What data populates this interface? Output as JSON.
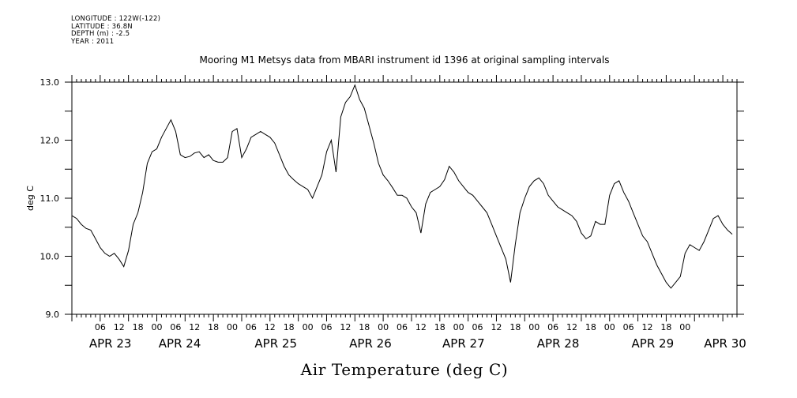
{
  "metadata": {
    "longitude": "LONGITUDE : 122W(-122)",
    "latitude": "LATITUDE : 36.8N",
    "depth": "DEPTH (m) : -2.5",
    "year": "YEAR : 2011"
  },
  "chart_data": {
    "type": "line",
    "title": "Mooring M1 Metsys data from MBARI instrument id 1396 at original sampling intervals",
    "xlabel": "Air Temperature (deg C)",
    "ylabel": "deg C",
    "ylim": [
      9.0,
      13.0
    ],
    "yticks": [
      "9.0",
      "10.0",
      "11.0",
      "12.0",
      "13.0"
    ],
    "xlim_hours": [
      0,
      141
    ],
    "hour_ticks": [
      "06",
      "12",
      "18",
      "00",
      "06",
      "12",
      "18",
      "00",
      "06",
      "12",
      "18",
      "00",
      "06",
      "12",
      "18",
      "00",
      "06",
      "12",
      "18",
      "00",
      "06",
      "12",
      "18",
      "00",
      "06",
      "12",
      "18",
      "00",
      "06",
      "12",
      "18",
      "00"
    ],
    "day_labels": [
      "APR 23",
      "APR 24",
      "APR 25",
      "APR 26",
      "APR 27",
      "APR 28",
      "APR 29",
      "APR 30"
    ],
    "grid": false,
    "series": [
      {
        "x": [
          0,
          1,
          2,
          3,
          4,
          5,
          6,
          7,
          8,
          9,
          10,
          11,
          12,
          13,
          14,
          15,
          16,
          17,
          18,
          19,
          20,
          21,
          22,
          23,
          24,
          25,
          26,
          27,
          28,
          29,
          30,
          31,
          32,
          33,
          34,
          35,
          36,
          37,
          38,
          39,
          40,
          41,
          42,
          43,
          44,
          45,
          46,
          47,
          48,
          49,
          50,
          51,
          52,
          53,
          54,
          55,
          56,
          57,
          58,
          59,
          60,
          61,
          62,
          63,
          64,
          65,
          66,
          67,
          68,
          69,
          70,
          71,
          72,
          73,
          74,
          75,
          76,
          77,
          78,
          79,
          80,
          81,
          82,
          83,
          84,
          85,
          86,
          87,
          88,
          89,
          90,
          91,
          92,
          93,
          94,
          95,
          96,
          97,
          98,
          99,
          100,
          101,
          102,
          103,
          104,
          105,
          106,
          107,
          108,
          109,
          110,
          111,
          112,
          113,
          114,
          115,
          116,
          117,
          118,
          119,
          120,
          121,
          122,
          123,
          124,
          125,
          126,
          127,
          128,
          129,
          130,
          131,
          132,
          133,
          134,
          135,
          136,
          137,
          138,
          139,
          140
        ],
        "values": [
          10.7,
          10.65,
          10.55,
          10.48,
          10.45,
          10.3,
          10.15,
          10.05,
          10.0,
          10.05,
          9.95,
          9.82,
          10.1,
          10.55,
          10.75,
          11.1,
          11.6,
          11.8,
          11.85,
          12.05,
          12.2,
          12.35,
          12.15,
          11.75,
          11.7,
          11.72,
          11.78,
          11.8,
          11.7,
          11.75,
          11.65,
          11.62,
          11.62,
          11.7,
          12.15,
          12.2,
          11.7,
          11.85,
          12.05,
          12.1,
          12.15,
          12.1,
          12.05,
          11.95,
          11.75,
          11.55,
          11.4,
          11.32,
          11.25,
          11.2,
          11.15,
          11.0,
          11.2,
          11.4,
          11.8,
          12.0,
          11.45,
          12.4,
          12.65,
          12.75,
          12.95,
          12.7,
          12.55,
          12.25,
          11.95,
          11.6,
          11.4,
          11.3,
          11.18,
          11.05,
          11.05,
          11.0,
          10.85,
          10.75,
          10.4,
          10.9,
          11.1,
          11.15,
          11.2,
          11.32,
          11.55,
          11.45,
          11.3,
          11.2,
          11.1,
          11.05,
          10.95,
          10.85,
          10.75,
          10.55,
          10.35,
          10.15,
          9.95,
          9.55,
          10.2,
          10.75,
          11.0,
          11.2,
          11.3,
          11.35,
          11.25,
          11.05,
          10.95,
          10.85,
          10.8,
          10.75,
          10.7,
          10.6,
          10.4,
          10.3,
          10.35,
          10.6,
          10.55,
          10.55,
          11.05,
          11.25,
          11.3,
          11.1,
          10.95,
          10.75,
          10.55,
          10.35,
          10.25,
          10.05,
          9.85,
          9.7,
          9.55,
          9.45,
          9.55,
          9.65,
          10.05,
          10.2,
          10.15,
          10.1,
          10.25,
          10.45,
          10.65,
          10.7,
          10.55,
          10.45,
          10.38
        ]
      }
    ]
  }
}
